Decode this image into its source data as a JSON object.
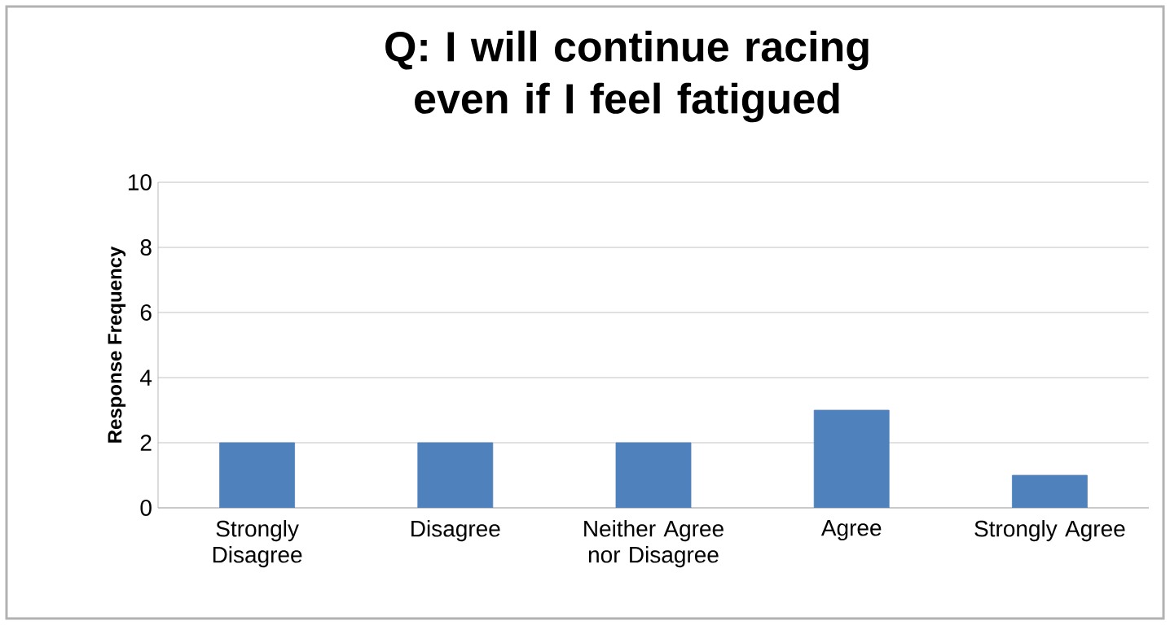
{
  "chart_data": {
    "type": "bar",
    "title": "Q: I will continue racing even if I feel fatigued",
    "ylabel": "Response Frequency",
    "categories": [
      "Strongly Disagree",
      "Disagree",
      "Neither Agree nor Disagree",
      "Agree",
      "Strongly Agree"
    ],
    "values": [
      2,
      2,
      2,
      3,
      1
    ],
    "color": "#4f81bd",
    "ylim": [
      0,
      10
    ],
    "yticks": [
      0,
      2,
      4,
      6,
      8,
      10
    ],
    "grid": "y"
  }
}
